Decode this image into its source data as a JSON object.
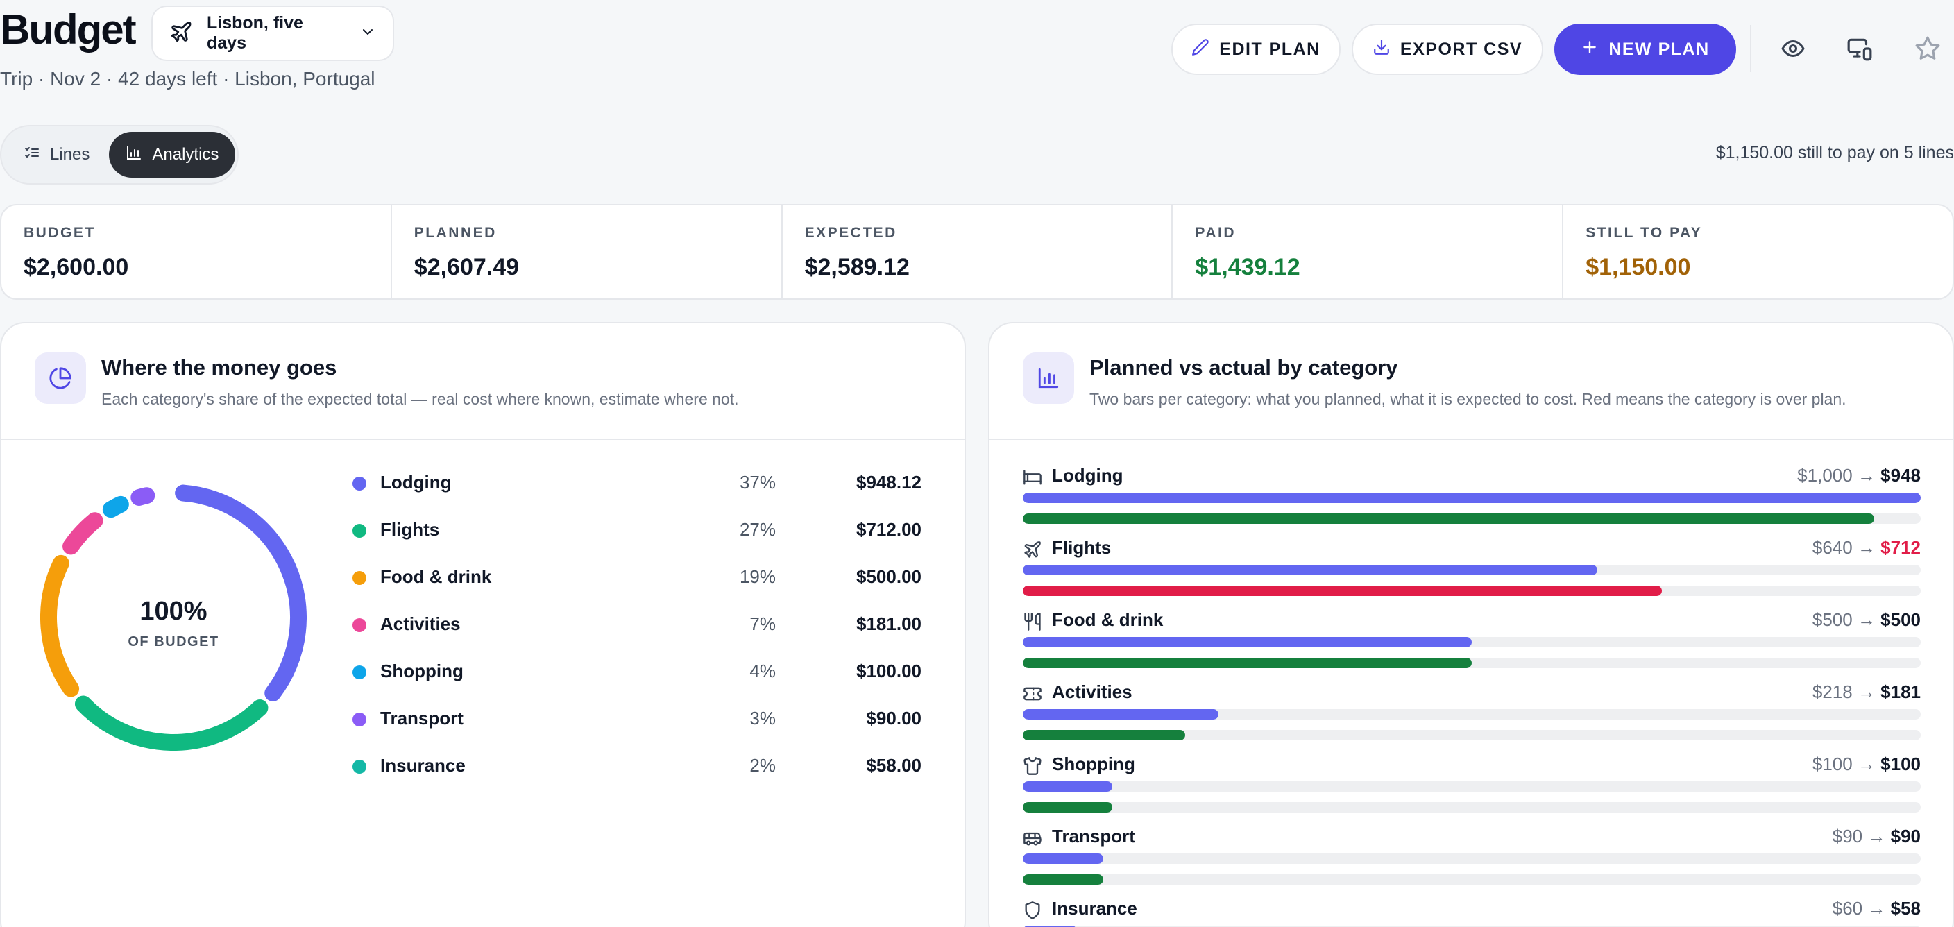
{
  "header": {
    "title": "Budget",
    "trip_select": "Lisbon, five days",
    "subtitle": "Trip · Nov 2 · 42 days left · Lisbon, Portugal",
    "edit_label": "EDIT PLAN",
    "export_label": "EXPORT CSV",
    "new_label": "NEW PLAN"
  },
  "tabs": {
    "lines": "Lines",
    "analytics": "Analytics"
  },
  "still_note": "$1,150.00 still to pay on 5 lines",
  "stats": [
    {
      "label": "BUDGET",
      "value": "$2,600.00",
      "color": "#111827"
    },
    {
      "label": "PLANNED",
      "value": "$2,607.49",
      "color": "#111827"
    },
    {
      "label": "EXPECTED",
      "value": "$2,589.12",
      "color": "#111827"
    },
    {
      "label": "PAID",
      "value": "$1,439.12",
      "color": "#15803d"
    },
    {
      "label": "STILL TO PAY",
      "value": "$1,150.00",
      "color": "#a16207"
    }
  ],
  "money_card": {
    "title": "Where the money goes",
    "subtitle": "Each category's share of the expected total — real cost where known, estimate where not.",
    "center_value": "100%",
    "center_label": "OF BUDGET",
    "items": [
      {
        "name": "Lodging",
        "pct": "37%",
        "amount": "$948.12",
        "share": 0.366,
        "color": "#6366f1"
      },
      {
        "name": "Flights",
        "pct": "27%",
        "amount": "$712.00",
        "share": 0.275,
        "color": "#10b981"
      },
      {
        "name": "Food & drink",
        "pct": "19%",
        "amount": "$500.00",
        "share": 0.193,
        "color": "#f59e0b"
      },
      {
        "name": "Activities",
        "pct": "7%",
        "amount": "$181.00",
        "share": 0.07,
        "color": "#ec4899"
      },
      {
        "name": "Shopping",
        "pct": "4%",
        "amount": "$100.00",
        "share": 0.039,
        "color": "#0ea5e9"
      },
      {
        "name": "Transport",
        "pct": "3%",
        "amount": "$90.00",
        "share": 0.035,
        "color": "#8b5cf6"
      },
      {
        "name": "Insurance",
        "pct": "2%",
        "amount": "$58.00",
        "share": 0.022,
        "color": "#14b8a6"
      }
    ]
  },
  "bars_card": {
    "title": "Planned vs actual by category",
    "subtitle": "Two bars per category: what you planned, what it is expected to cost. Red means the category is over plan.",
    "max_value": 1000,
    "planned_color": "#6366f1",
    "ok_color": "#15803d",
    "over_color": "#e11d48",
    "rows": [
      {
        "name": "Lodging",
        "icon": "bed-icon",
        "planned_label": "$1,000",
        "expected_label": "$948",
        "planned": 1000,
        "expected": 948,
        "over": false
      },
      {
        "name": "Flights",
        "icon": "plane-icon",
        "planned_label": "$640",
        "expected_label": "$712",
        "planned": 640,
        "expected": 712,
        "over": true
      },
      {
        "name": "Food & drink",
        "icon": "utensils-icon",
        "planned_label": "$500",
        "expected_label": "$500",
        "planned": 500,
        "expected": 500,
        "over": false
      },
      {
        "name": "Activities",
        "icon": "ticket-icon",
        "planned_label": "$218",
        "expected_label": "$181",
        "planned": 218,
        "expected": 181,
        "over": false
      },
      {
        "name": "Shopping",
        "icon": "shirt-icon",
        "planned_label": "$100",
        "expected_label": "$100",
        "planned": 100,
        "expected": 100,
        "over": false
      },
      {
        "name": "Transport",
        "icon": "bus-icon",
        "planned_label": "$90",
        "expected_label": "$90",
        "planned": 90,
        "expected": 90,
        "over": false
      },
      {
        "name": "Insurance",
        "icon": "shield-icon",
        "planned_label": "$60",
        "expected_label": "$58",
        "planned": 60,
        "expected": 58,
        "over": false
      }
    ]
  }
}
